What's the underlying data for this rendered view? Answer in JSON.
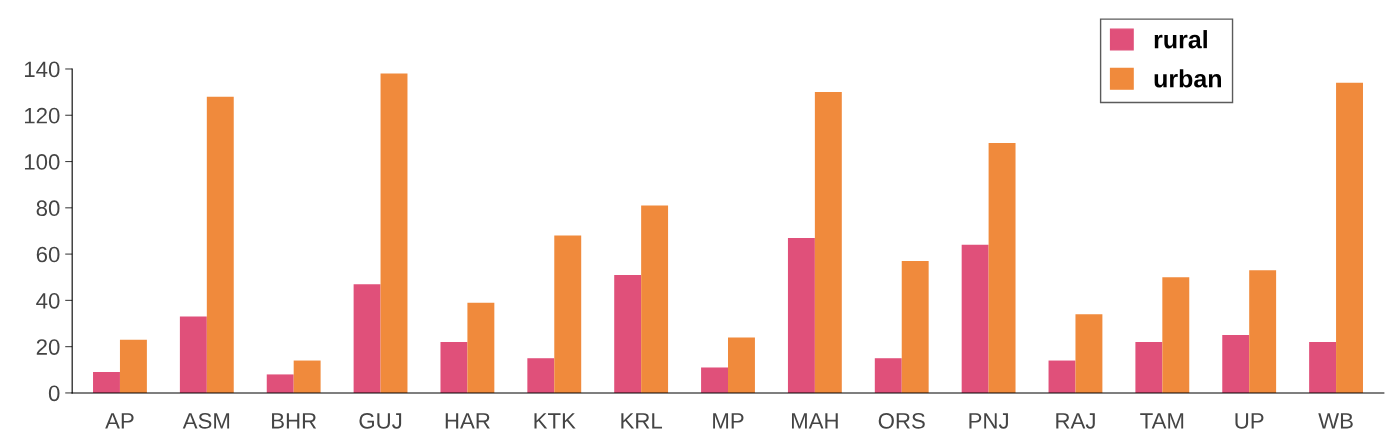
{
  "chart_data": {
    "type": "bar",
    "categories": [
      "AP",
      "ASM",
      "BHR",
      "GUJ",
      "HAR",
      "KTK",
      "KRL",
      "MP",
      "MAH",
      "ORS",
      "PNJ",
      "RAJ",
      "TAM",
      "UP",
      "WB"
    ],
    "series": [
      {
        "name": "rural",
        "color": "#e0507a",
        "values": [
          9,
          33,
          8,
          47,
          22,
          15,
          51,
          11,
          67,
          15,
          64,
          14,
          22,
          25,
          22
        ]
      },
      {
        "name": "urban",
        "color": "#f08a3c",
        "values": [
          23,
          128,
          14,
          138,
          39,
          68,
          81,
          24,
          130,
          57,
          108,
          34,
          50,
          53,
          134
        ]
      }
    ],
    "ylim": [
      0,
      140
    ],
    "yticks": [
      0,
      20,
      40,
      60,
      80,
      100,
      120,
      140
    ],
    "grid": false,
    "legend": "top right"
  }
}
